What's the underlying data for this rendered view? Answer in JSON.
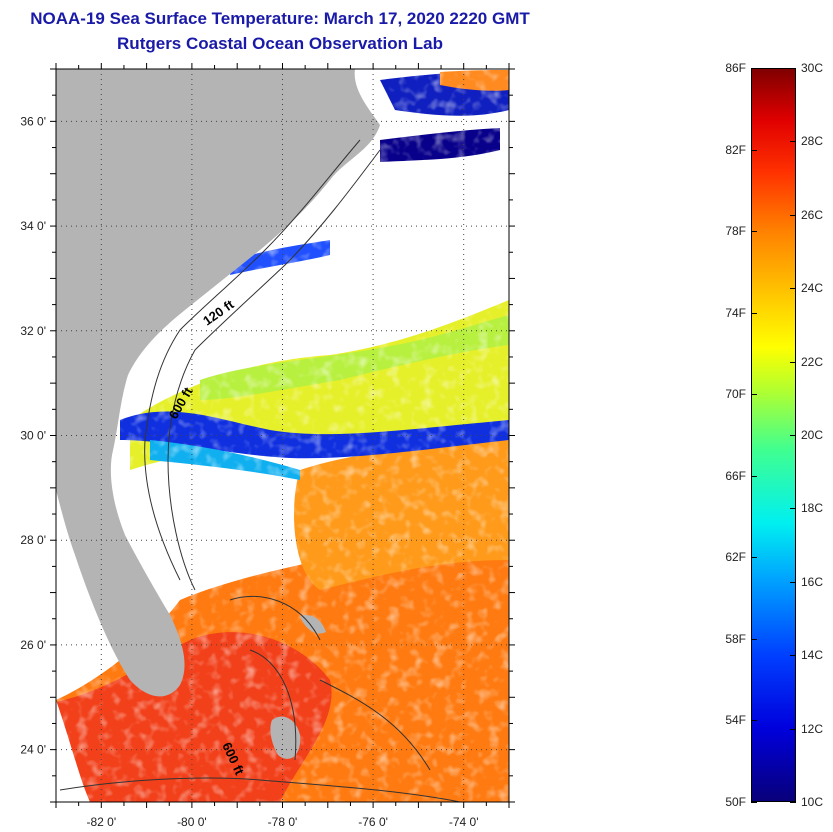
{
  "title": {
    "line1": "NOAA-19 Sea Surface Temperature:  March 17, 2020 2220 GMT",
    "line2": "Rutgers Coastal Ocean Observation Lab"
  },
  "map": {
    "lat_labels": [
      "36 0'",
      "34 0'",
      "32 0'",
      "30 0'",
      "28 0'",
      "26 0'",
      "24 0'"
    ],
    "lat_values": [
      36,
      34,
      32,
      30,
      28,
      26,
      24
    ],
    "lon_labels": [
      "-82 0'",
      "-80 0'",
      "-78 0'",
      "-76 0'",
      "-74 0'"
    ],
    "lon_values": [
      -82,
      -80,
      -78,
      -76,
      -74
    ],
    "lon_range": [
      -83,
      -73
    ],
    "lat_range": [
      23,
      37
    ],
    "contour_labels": [
      "120 ft",
      "600 ft",
      "600 ft"
    ],
    "colors": {
      "land": "#b4b4b4",
      "cloud": "#ffffff",
      "title": "#1a1aa8"
    }
  },
  "colorbar": {
    "fahrenheit": [
      "86F",
      "82F",
      "78F",
      "74F",
      "70F",
      "66F",
      "62F",
      "58F",
      "54F",
      "50F"
    ],
    "celsius": [
      "30C",
      "28C",
      "26C",
      "24C",
      "22C",
      "20C",
      "18C",
      "16C",
      "14C",
      "12C",
      "10C"
    ],
    "colors": [
      "#08007a",
      "#0000dd",
      "#0040ff",
      "#00a0ff",
      "#00f0f0",
      "#40ff90",
      "#b0ff30",
      "#ffff00",
      "#ffc000",
      "#ff8000",
      "#ff3000",
      "#e00000",
      "#800000"
    ]
  }
}
